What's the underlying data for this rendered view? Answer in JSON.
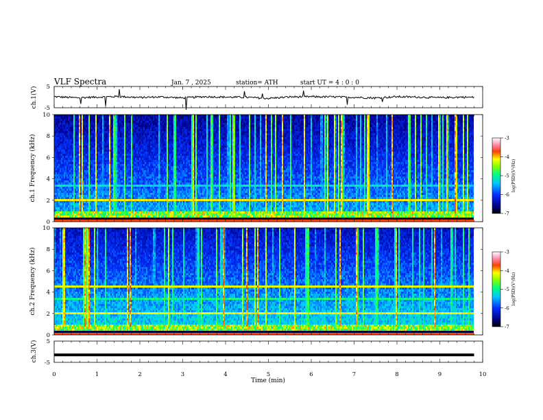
{
  "header": {
    "title": "VLF  Spectra",
    "date": "Jan.  7  , 2025",
    "station": "station= ATH",
    "start": "start  UT  =   4  : 0  : 0"
  },
  "chart_data": [
    {
      "type": "line",
      "panel": "ch1-waveform",
      "ylabel": "ch.1(V)",
      "yticks": [
        "5",
        "-5"
      ],
      "ylim": [
        -5,
        5
      ],
      "x": [
        0,
        0.5,
        1,
        1.5,
        2,
        2.5,
        3,
        3.5,
        4,
        4.5,
        5,
        5.5,
        6,
        6.5,
        7,
        7.5,
        8,
        8.5,
        9,
        9.5,
        9.8
      ],
      "y": [
        0.2,
        -0.3,
        0.0,
        0.3,
        -0.2,
        0.1,
        -0.4,
        0.2,
        0.0,
        -0.1,
        -0.6,
        0.1,
        0.2,
        0.1,
        -0.1,
        -0.4,
        0.2,
        0.0,
        -0.3,
        0.0,
        -0.1
      ],
      "line_color": "#111111"
    },
    {
      "type": "heatmap",
      "panel": "ch1-spectrogram",
      "ylabel": "ch.1 Frequency  (kHz)",
      "yticks": [
        "0",
        "2",
        "4",
        "6",
        "8",
        "10"
      ],
      "ylim": [
        0,
        10
      ],
      "colorbar": {
        "label": "log(PSD)(V²/Hz)",
        "ticks": [
          "-3",
          "-4",
          "-5",
          "-6",
          "-7"
        ],
        "range": [
          -7,
          -3
        ]
      }
    },
    {
      "type": "heatmap",
      "panel": "ch2-spectrogram",
      "ylabel": "ch.2 Frequency  (kHz)",
      "yticks": [
        "0",
        "2",
        "4",
        "6",
        "8",
        "10"
      ],
      "ylim": [
        0,
        10
      ],
      "colorbar": {
        "label": "log(PSD)(V²/Hz)",
        "ticks": [
          "-3",
          "-4",
          "-5",
          "-6",
          "-7"
        ],
        "range": [
          -7,
          -3
        ]
      }
    },
    {
      "type": "line",
      "panel": "ch3-waveform",
      "ylabel": "ch.3(V)",
      "yticks": [
        "5",
        "-5"
      ],
      "ylim": [
        -5,
        5
      ],
      "x": [
        0,
        9.8
      ],
      "y": [
        -1.5,
        -1.5
      ],
      "line_color": "#000000"
    }
  ],
  "xaxis": {
    "label": "Time  (min)",
    "ticks": [
      "0",
      "1",
      "2",
      "3",
      "4",
      "5",
      "6",
      "7",
      "8",
      "9",
      "10"
    ],
    "xlim": [
      0,
      10
    ]
  }
}
